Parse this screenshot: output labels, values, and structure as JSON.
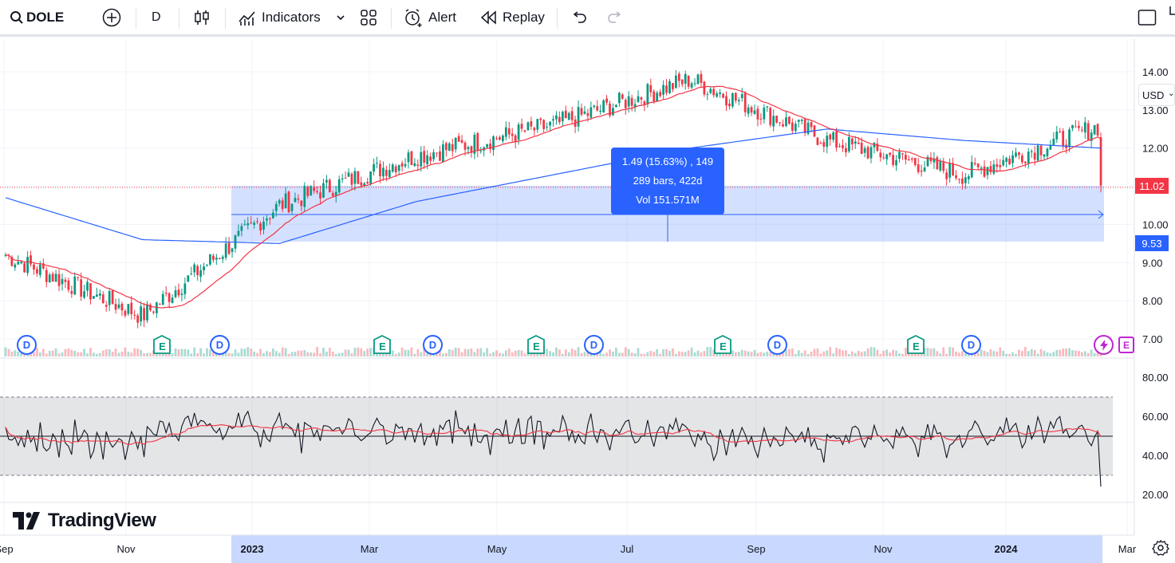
{
  "toolbar": {
    "symbol": "DOLE",
    "interval": "D",
    "indicators_label": "Indicators",
    "alert_label": "Alert",
    "replay_label": "Replay"
  },
  "currency": "USD",
  "price_axis": {
    "ticks": [
      "14.00",
      "13.00",
      "12.00",
      "10.00",
      "9.00",
      "8.00",
      "7.00"
    ],
    "current_price": "11.02",
    "range_low": "9.53"
  },
  "rsi_axis": {
    "ticks": [
      "80.00",
      "60.00",
      "40.00",
      "20.00"
    ]
  },
  "time_axis": {
    "labels": [
      "Sep",
      "Nov",
      "2023",
      "Mar",
      "May",
      "Jul",
      "Sep",
      "Nov",
      "2024",
      "Mar"
    ]
  },
  "measure_tooltip": {
    "line1": "1.49 (15.63%) , 149",
    "line2": "289 bars, 422d",
    "line3": "Vol 151.571M"
  },
  "events": [
    "D",
    "E",
    "D",
    "E",
    "D",
    "E",
    "D",
    "E",
    "D",
    "E",
    "D",
    "E"
  ],
  "logo_text": "TradingView",
  "colors": {
    "up": "#089981",
    "down": "#f23645",
    "ma_fast": "#f23645",
    "ma_slow": "#2962ff",
    "range_fill": "#2962ff",
    "rsi_line": "#131722",
    "rsi_ma": "#f23645"
  },
  "chart_data": {
    "type": "line",
    "symbol": "DOLE",
    "interval": "D",
    "x": [
      "Sep",
      "Nov",
      "2023",
      "Mar",
      "May",
      "Jul",
      "Sep",
      "Nov",
      "2024"
    ],
    "series": [
      {
        "values": [
          9.2,
          7.6,
          10.5,
          11.8,
          12.6,
          13.8,
          12.2,
          11.3,
          12.6
        ]
      },
      {
        "values": [
          10.7,
          9.6,
          9.5,
          10.6,
          11.3,
          12.0,
          12.5,
          12.2,
          12.0
        ]
      }
    ],
    "ylim": [
      7,
      14
    ],
    "measured_range": {
      "low": 9.53,
      "high": 11.02,
      "change": 1.49,
      "change_pct": 15.63,
      "bars": 289,
      "days": 422,
      "volume": "151.571M"
    },
    "rsi": {
      "ylim": [
        20,
        80
      ],
      "upper_band": 70,
      "lower_band": 30,
      "midline": 50
    }
  }
}
